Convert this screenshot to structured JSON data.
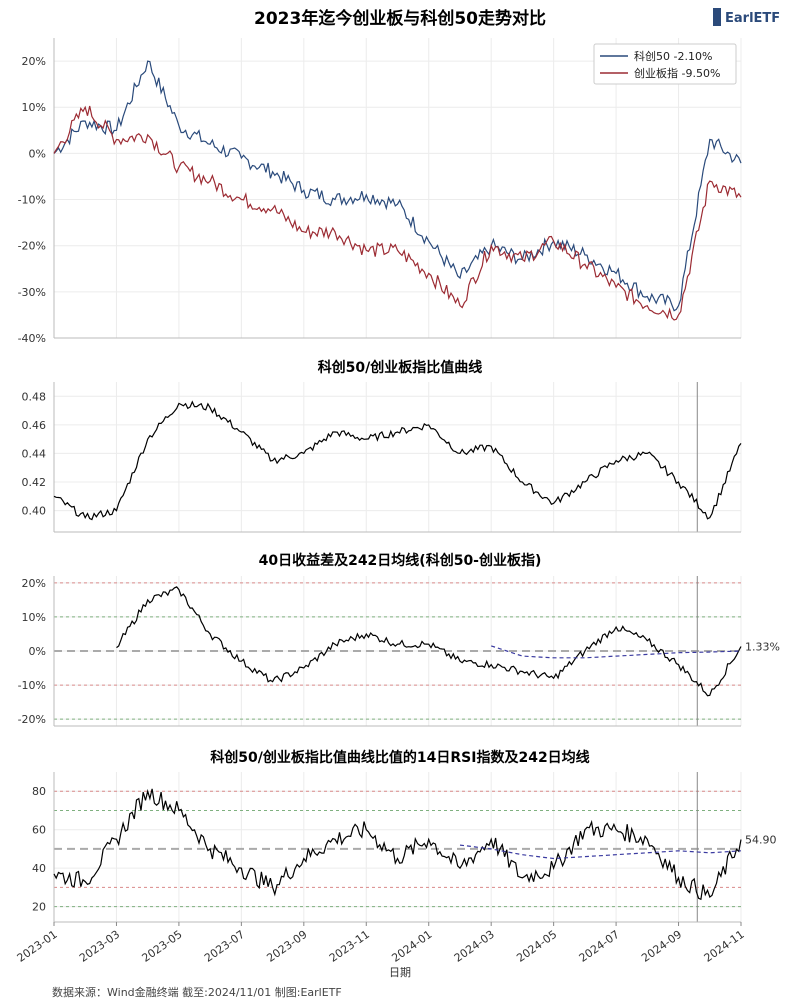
{
  "header": {
    "title": "2023年迄今创业板与科创50走势对比",
    "logo": "EarlETF"
  },
  "footer": {
    "source": "数据来源：Wind金融终端 截至:2024/11/01 制图:EarlETF",
    "xlabel": "日期"
  },
  "colors": {
    "kc50": "#2a4a7b",
    "cyb": "#9c2b33",
    "black": "#000000",
    "ma": "#3a3aa0",
    "red_dash": "#d98a8a",
    "green_dash": "#7fb07f",
    "grey_dash": "#aaaaaa"
  },
  "x_ticks": [
    "2023-01",
    "2023-03",
    "2023-05",
    "2023-07",
    "2023-09",
    "2023-11",
    "2024-01",
    "2024-03",
    "2024-05",
    "2024-07",
    "2024-09",
    "2024-11"
  ],
  "chart_data": [
    {
      "type": "line",
      "title": "2023年迄今创业板与科创50走势对比",
      "ylim": [
        -40,
        25
      ],
      "yticks": [
        "20%",
        "10%",
        "0%",
        "-10%",
        "-20%",
        "-30%",
        "-40%"
      ],
      "ytick_values": [
        20,
        10,
        0,
        -10,
        -20,
        -30,
        -40
      ],
      "legend_position": "top-right",
      "x": [
        "2023-01",
        "2023-02",
        "2023-03",
        "2023-04",
        "2023-05",
        "2023-06",
        "2023-07",
        "2023-08",
        "2023-09",
        "2023-10",
        "2023-11",
        "2023-12",
        "2024-01",
        "2024-02",
        "2024-03",
        "2024-04",
        "2024-05",
        "2024-06",
        "2024-07",
        "2024-08",
        "2024-09",
        "2024-10",
        "2024-11"
      ],
      "series": [
        {
          "name": "科创50  -2.10%",
          "values": [
            0,
            7,
            5,
            20,
            6,
            2,
            -1,
            -4,
            -8,
            -10,
            -9,
            -11,
            -19,
            -27,
            -20,
            -23,
            -19,
            -22,
            -26,
            -31,
            -33,
            3,
            -2.1
          ]
        },
        {
          "name": "创业板指  -9.50%",
          "values": [
            0,
            10,
            3,
            4,
            -3,
            -6,
            -10,
            -12,
            -17,
            -17,
            -21,
            -21,
            -26,
            -33,
            -20,
            -23,
            -19,
            -24,
            -29,
            -33,
            -35,
            -6,
            -9.5
          ]
        }
      ]
    },
    {
      "type": "line",
      "title": "科创50/创业板指比值曲线",
      "ylim": [
        0.385,
        0.49
      ],
      "yticks": [
        "0.48",
        "0.46",
        "0.44",
        "0.42",
        "0.40"
      ],
      "ytick_values": [
        0.48,
        0.46,
        0.44,
        0.42,
        0.4
      ],
      "x": [
        "2023-01",
        "2023-02",
        "2023-03",
        "2023-04",
        "2023-05",
        "2023-06",
        "2023-07",
        "2023-08",
        "2023-09",
        "2023-10",
        "2023-11",
        "2023-12",
        "2024-01",
        "2024-02",
        "2024-03",
        "2024-04",
        "2024-05",
        "2024-06",
        "2024-07",
        "2024-08",
        "2024-09",
        "2024-10",
        "2024-11"
      ],
      "series": [
        {
          "values": [
            0.41,
            0.395,
            0.4,
            0.45,
            0.475,
            0.472,
            0.455,
            0.435,
            0.44,
            0.455,
            0.45,
            0.455,
            0.46,
            0.44,
            0.445,
            0.42,
            0.405,
            0.42,
            0.435,
            0.44,
            0.42,
            0.395,
            0.447
          ]
        }
      ]
    },
    {
      "type": "line",
      "title": "40日收益差及242日均线(科创50-创业板指)",
      "ylim": [
        -22,
        22
      ],
      "yticks": [
        "20%",
        "10%",
        "0%",
        "-10%",
        "-20%"
      ],
      "ytick_values": [
        20,
        10,
        0,
        -10,
        -20
      ],
      "last_value_label": "1.33%",
      "x": [
        "2023-03",
        "2023-04",
        "2023-05",
        "2023-06",
        "2023-07",
        "2023-08",
        "2023-09",
        "2023-10",
        "2023-11",
        "2023-12",
        "2024-01",
        "2024-02",
        "2024-03",
        "2024-04",
        "2024-05",
        "2024-06",
        "2024-07",
        "2024-08",
        "2024-09",
        "2024-10",
        "2024-11"
      ],
      "series": [
        {
          "values": [
            1,
            15,
            18,
            5,
            -3,
            -9,
            -5,
            2,
            5,
            2,
            2,
            -3,
            -4,
            -6,
            -8,
            0,
            7,
            3,
            -4,
            -13,
            1.33
          ]
        },
        {
          "values": [
            null,
            null,
            null,
            null,
            null,
            null,
            null,
            null,
            null,
            null,
            null,
            null,
            1.5,
            -1.5,
            -2,
            -2,
            -1.5,
            -1,
            -0.5,
            -0.3,
            0
          ]
        }
      ]
    },
    {
      "type": "line",
      "title": "科创50/创业板指比值曲线比值的14日RSI指数及242日均线",
      "ylim": [
        12,
        90
      ],
      "yticks": [
        "80",
        "60",
        "40",
        "20"
      ],
      "ytick_values": [
        80,
        60,
        40,
        20
      ],
      "last_value_label": "54.90",
      "x": [
        "2023-01",
        "2023-02",
        "2023-03",
        "2023-04",
        "2023-05",
        "2023-06",
        "2023-07",
        "2023-08",
        "2023-09",
        "2023-10",
        "2023-11",
        "2023-12",
        "2024-01",
        "2024-02",
        "2024-03",
        "2024-04",
        "2024-05",
        "2024-06",
        "2024-07",
        "2024-08",
        "2024-09",
        "2024-10",
        "2024-11"
      ],
      "series": [
        {
          "values": [
            37,
            33,
            55,
            80,
            70,
            50,
            40,
            30,
            45,
            55,
            60,
            45,
            55,
            40,
            55,
            35,
            40,
            60,
            60,
            55,
            35,
            25,
            54.9
          ]
        },
        {
          "values": [
            null,
            null,
            null,
            null,
            null,
            null,
            null,
            null,
            null,
            null,
            null,
            null,
            null,
            52,
            50,
            47,
            45,
            46,
            47,
            48,
            49,
            48,
            49
          ]
        }
      ]
    }
  ]
}
